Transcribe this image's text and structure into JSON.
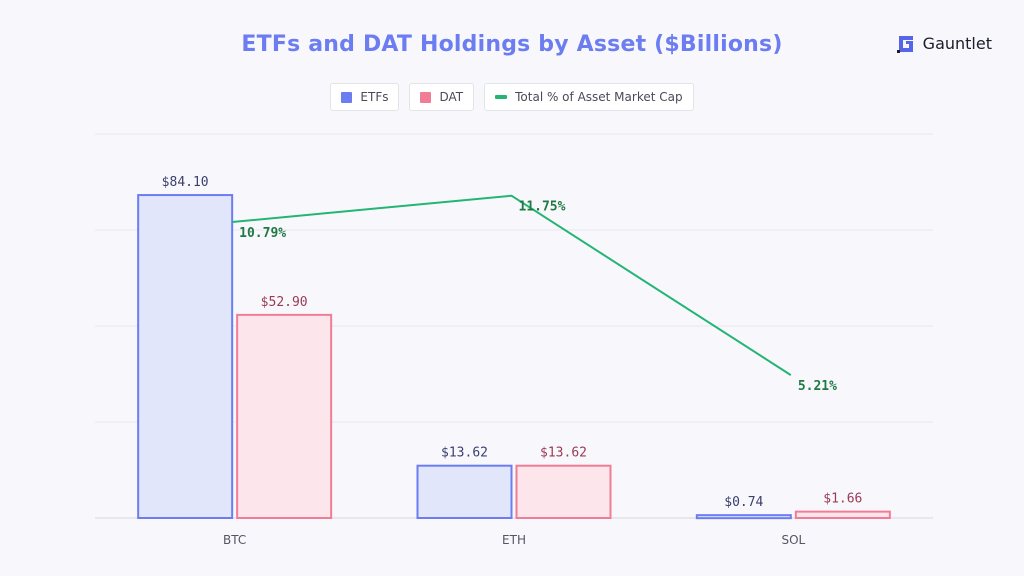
{
  "title": "ETFs and DAT Holdings by Asset ($Billions)",
  "brand": {
    "name": "Gauntlet",
    "icon": "gauntlet-logo-icon"
  },
  "colors": {
    "etf": "#6b7df0",
    "etf_fill": "#e2e6fb",
    "dat": "#f07c95",
    "dat_fill": "#fce6ec",
    "line": "#22b573",
    "etf_label": "#3a3f6e",
    "dat_label": "#9a3a55",
    "line_label": "#1e7a45",
    "title": "#6b7df0"
  },
  "legend": [
    {
      "label": "ETFs",
      "swatch": "etf"
    },
    {
      "label": "DAT",
      "swatch": "dat"
    },
    {
      "label": "Total % of Asset Market Cap",
      "swatch": "line"
    }
  ],
  "chart_data": {
    "type": "bar",
    "categories": [
      "BTC",
      "ETH",
      "SOL"
    ],
    "series": [
      {
        "name": "ETFs",
        "type": "bar",
        "values": [
          84.1,
          13.62,
          0.74
        ],
        "labels": [
          "$84.10",
          "$13.62",
          "$0.74"
        ]
      },
      {
        "name": "DAT",
        "type": "bar",
        "values": [
          52.9,
          13.62,
          1.66
        ],
        "labels": [
          "$52.90",
          "$13.62",
          "$1.66"
        ]
      },
      {
        "name": "Total % of Asset Market Cap",
        "type": "line",
        "axis": "secondary",
        "values": [
          10.79,
          11.75,
          5.21
        ],
        "labels": [
          "10.79%",
          "11.75%",
          "5.21%"
        ]
      }
    ],
    "ylim": [
      0,
      100
    ],
    "y2lim": [
      0,
      14
    ],
    "grid": true,
    "legend_position": "top-center",
    "title": "ETFs and DAT Holdings by Asset ($Billions)"
  }
}
